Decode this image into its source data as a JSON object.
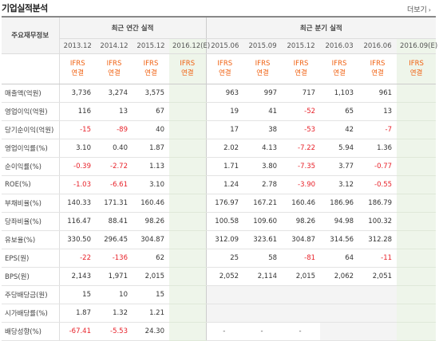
{
  "header": {
    "title": "기업실적분석",
    "more_label": "더보기",
    "more_arrow": "›"
  },
  "table": {
    "label_header": "주요재무정보",
    "group_annual": "최근 연간 실적",
    "group_quarterly": "최근 분기 실적",
    "periods": [
      "2013.12",
      "2014.12",
      "2015.12",
      "2016.12(E)",
      "2015.06",
      "2015.09",
      "2015.12",
      "2016.03",
      "2016.06",
      "2016.09(E)"
    ],
    "basis": {
      "line1": "IFRS",
      "line2": "연결"
    },
    "rows": [
      {
        "label": "매출액(억원)",
        "values": [
          "3,736",
          "3,274",
          "3,575",
          "",
          "963",
          "997",
          "717",
          "1,103",
          "961",
          ""
        ]
      },
      {
        "label": "영업이익(억원)",
        "values": [
          "116",
          "13",
          "67",
          "",
          "19",
          "41",
          "-52",
          "65",
          "13",
          ""
        ]
      },
      {
        "label": "당기순이익(억원)",
        "values": [
          "-15",
          "-89",
          "40",
          "",
          "17",
          "38",
          "-53",
          "42",
          "-7",
          ""
        ]
      },
      {
        "label": "영업이익률(%)",
        "values": [
          "3.10",
          "0.40",
          "1.87",
          "",
          "2.02",
          "4.13",
          "-7.22",
          "5.94",
          "1.36",
          ""
        ]
      },
      {
        "label": "순이익률(%)",
        "values": [
          "-0.39",
          "-2.72",
          "1.13",
          "",
          "1.71",
          "3.80",
          "-7.35",
          "3.77",
          "-0.77",
          ""
        ]
      },
      {
        "label": "ROE(%)",
        "values": [
          "-1.03",
          "-6.61",
          "3.10",
          "",
          "1.24",
          "2.78",
          "-3.90",
          "3.12",
          "-0.55",
          ""
        ]
      },
      {
        "label": "부채비율(%)",
        "values": [
          "140.33",
          "171.31",
          "160.46",
          "",
          "176.97",
          "167.21",
          "160.46",
          "186.96",
          "186.79",
          ""
        ]
      },
      {
        "label": "당좌비율(%)",
        "values": [
          "116.47",
          "88.41",
          "98.26",
          "",
          "100.58",
          "109.60",
          "98.26",
          "94.98",
          "100.32",
          ""
        ]
      },
      {
        "label": "유보율(%)",
        "values": [
          "330.50",
          "296.45",
          "304.87",
          "",
          "312.09",
          "323.61",
          "304.87",
          "314.56",
          "312.28",
          ""
        ]
      },
      {
        "label": "EPS(원)",
        "values": [
          "-22",
          "-136",
          "62",
          "",
          "25",
          "58",
          "-81",
          "64",
          "-11",
          ""
        ]
      },
      {
        "label": "BPS(원)",
        "values": [
          "2,143",
          "1,971",
          "2,015",
          "",
          "2,052",
          "2,114",
          "2,015",
          "2,062",
          "2,051",
          ""
        ]
      },
      {
        "label": "주당배당금(원)",
        "values": [
          "15",
          "10",
          "15",
          "",
          "",
          "",
          "",
          "",
          "",
          ""
        ]
      },
      {
        "label": "시가배당률(%)",
        "values": [
          "1.87",
          "1.32",
          "1.21",
          "",
          "",
          "",
          "",
          "",
          "",
          ""
        ]
      },
      {
        "label": "배당성향(%)",
        "values": [
          "-67.41",
          "-5.53",
          "24.30",
          "",
          "-",
          "-",
          "-",
          "",
          "",
          ""
        ]
      }
    ]
  }
}
